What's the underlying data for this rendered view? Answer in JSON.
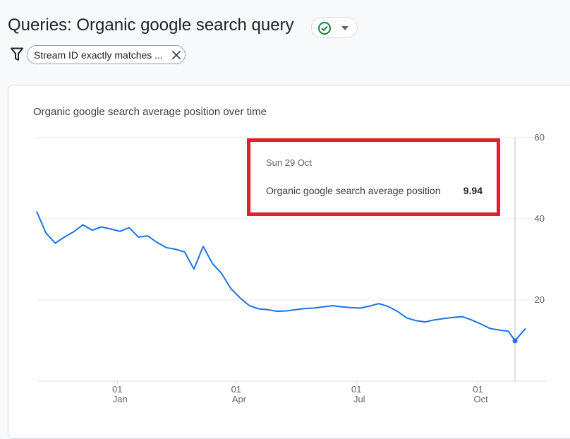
{
  "header": {
    "title": "Queries: Organic google search query",
    "status_icon": "check-circle-icon",
    "status_color": "#188038",
    "dropdown_icon": "caret-down-icon"
  },
  "filter": {
    "icon": "filter-icon",
    "chip_label": "Stream ID exactly matches ...",
    "remove_icon": "close-icon"
  },
  "card": {
    "title": "Organic google search average position over time"
  },
  "tooltip": {
    "date": "Sun 29 Oct",
    "metric_label": "Organic google search average position",
    "metric_value": "9.94"
  },
  "chart_data": {
    "type": "line",
    "title": "Organic google search average position over time",
    "xlabel": "",
    "ylabel": "",
    "y_axis_position": "right",
    "ylim": [
      0,
      60
    ],
    "y_ticks": [
      20,
      40,
      60
    ],
    "x_ticks": [
      {
        "date": "2023-01-01",
        "day": "01",
        "month": "Jan"
      },
      {
        "date": "2023-04-01",
        "day": "01",
        "month": "Apr"
      },
      {
        "date": "2023-07-01",
        "day": "01",
        "month": "Jul"
      },
      {
        "date": "2023-10-01",
        "day": "01",
        "month": "Oct"
      }
    ],
    "x_range": [
      "2022-11-01",
      "2023-11-06"
    ],
    "grid": true,
    "line_color": "#1a73e8",
    "series": [
      {
        "name": "Organic google search average position",
        "points": [
          [
            "2022-11-01",
            41.8
          ],
          [
            "2022-11-08",
            36.5
          ],
          [
            "2022-11-15",
            34.0
          ],
          [
            "2022-11-22",
            35.5
          ],
          [
            "2022-11-29",
            36.8
          ],
          [
            "2022-12-06",
            38.5
          ],
          [
            "2022-12-13",
            37.2
          ],
          [
            "2022-12-20",
            38.0
          ],
          [
            "2022-12-27",
            37.5
          ],
          [
            "2023-01-03",
            36.9
          ],
          [
            "2023-01-10",
            37.8
          ],
          [
            "2023-01-17",
            35.5
          ],
          [
            "2023-01-24",
            35.8
          ],
          [
            "2023-01-31",
            34.2
          ],
          [
            "2023-02-07",
            32.9
          ],
          [
            "2023-02-14",
            32.5
          ],
          [
            "2023-02-21",
            31.8
          ],
          [
            "2023-02-28",
            27.6
          ],
          [
            "2023-03-07",
            33.2
          ],
          [
            "2023-03-14",
            29.0
          ],
          [
            "2023-03-21",
            26.5
          ],
          [
            "2023-03-28",
            22.8
          ],
          [
            "2023-04-04",
            20.5
          ],
          [
            "2023-04-11",
            18.6
          ],
          [
            "2023-04-18",
            17.8
          ],
          [
            "2023-04-25",
            17.6
          ],
          [
            "2023-05-02",
            17.2
          ],
          [
            "2023-05-09",
            17.3
          ],
          [
            "2023-05-16",
            17.6
          ],
          [
            "2023-05-23",
            17.9
          ],
          [
            "2023-05-30",
            18.0
          ],
          [
            "2023-06-06",
            18.3
          ],
          [
            "2023-06-13",
            18.6
          ],
          [
            "2023-06-20",
            18.3
          ],
          [
            "2023-06-27",
            18.1
          ],
          [
            "2023-07-04",
            18.0
          ],
          [
            "2023-07-11",
            18.5
          ],
          [
            "2023-07-18",
            19.1
          ],
          [
            "2023-07-25",
            18.4
          ],
          [
            "2023-08-01",
            17.2
          ],
          [
            "2023-08-08",
            15.6
          ],
          [
            "2023-08-15",
            14.9
          ],
          [
            "2023-08-22",
            14.6
          ],
          [
            "2023-08-29",
            15.1
          ],
          [
            "2023-09-05",
            15.4
          ],
          [
            "2023-09-12",
            15.7
          ],
          [
            "2023-09-19",
            15.9
          ],
          [
            "2023-09-26",
            15.1
          ],
          [
            "2023-10-03",
            14.1
          ],
          [
            "2023-10-10",
            13.0
          ],
          [
            "2023-10-17",
            12.6
          ],
          [
            "2023-10-24",
            12.3
          ],
          [
            "2023-10-29",
            9.94
          ],
          [
            "2023-11-06",
            13.0
          ]
        ]
      }
    ],
    "hover_point": [
      "2023-10-29",
      9.94
    ]
  }
}
